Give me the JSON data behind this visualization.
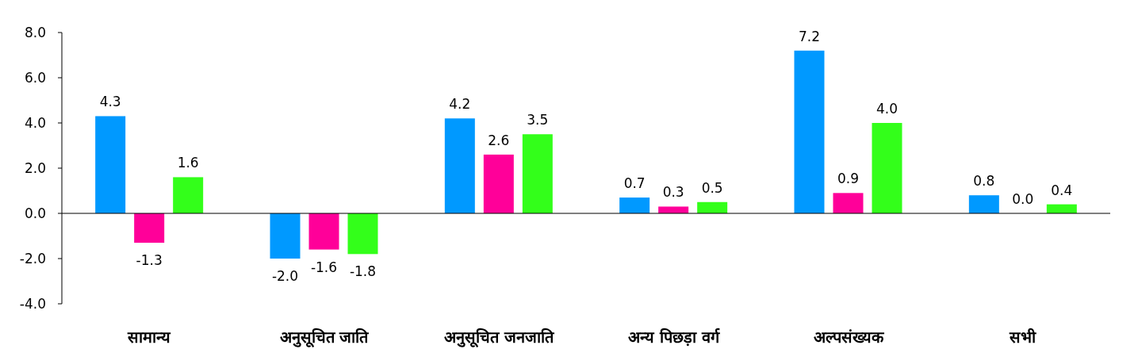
{
  "chart_data": {
    "type": "bar",
    "categories": [
      "सामान्य",
      "अनुसूचित जाति",
      "अनुसूचित जनजाति",
      "अन्य पिछड़ा वर्ग",
      "अल्पसंख्यक",
      "सभी"
    ],
    "series": [
      {
        "color": "#0099ff",
        "values": [
          4.3,
          -2.0,
          4.2,
          0.7,
          7.2,
          0.8
        ],
        "value_labels": [
          "4.3",
          "-2.0",
          "4.2",
          "0.7",
          "7.2",
          "0.8"
        ]
      },
      {
        "color": "#ff0099",
        "values": [
          -1.3,
          -1.6,
          2.6,
          0.3,
          0.9,
          0.0
        ],
        "value_labels": [
          "-1.3",
          "-1.6",
          "2.6",
          "0.3",
          "0.9",
          "0.0"
        ]
      },
      {
        "color": "#33ff1a",
        "values": [
          1.6,
          -1.8,
          3.5,
          0.5,
          4.0,
          0.4
        ],
        "value_labels": [
          "1.6",
          "-1.8",
          "3.5",
          "0.5",
          "4.0",
          "0.4"
        ]
      }
    ],
    "ylim": [
      -4,
      8
    ],
    "yticks": [
      {
        "value": -4,
        "label": "-4.0"
      },
      {
        "value": -2,
        "label": "-2.0"
      },
      {
        "value": 0,
        "label": "0.0"
      },
      {
        "value": 2,
        "label": "2.0"
      },
      {
        "value": 4,
        "label": "4.0"
      },
      {
        "value": 6,
        "label": "6.0"
      },
      {
        "value": 8,
        "label": "8.0"
      }
    ]
  }
}
